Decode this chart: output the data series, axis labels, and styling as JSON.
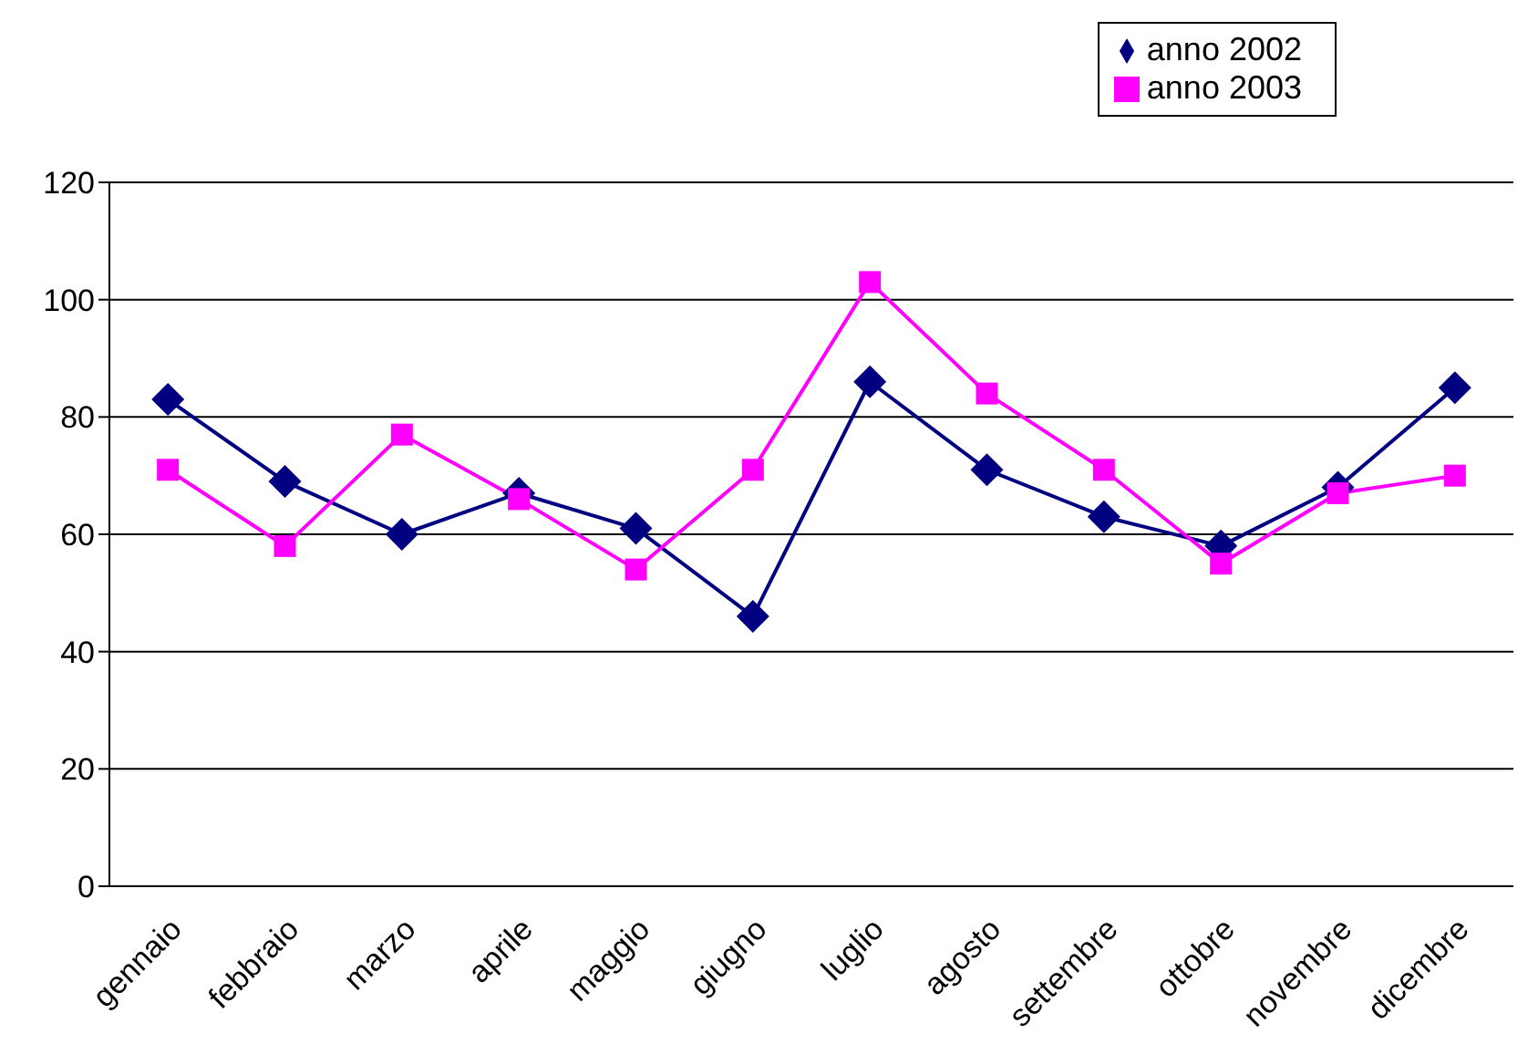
{
  "chart_data": {
    "type": "line",
    "categories": [
      "gennaio",
      "febbraio",
      "marzo",
      "aprile",
      "maggio",
      "giugno",
      "luglio",
      "agosto",
      "settembre",
      "ottobre",
      "novembre",
      "dicembre"
    ],
    "series": [
      {
        "name": "anno 2002",
        "color": "#000080",
        "marker": "diamond",
        "values": [
          83,
          69,
          60,
          67,
          61,
          46,
          86,
          71,
          63,
          58,
          68,
          85
        ]
      },
      {
        "name": "anno 2003",
        "color": "#ff00ff",
        "marker": "square",
        "values": [
          71,
          58,
          77,
          66,
          54,
          71,
          103,
          84,
          71,
          55,
          67,
          70
        ]
      }
    ],
    "ylim": [
      0,
      120
    ],
    "yticks": [
      0,
      20,
      40,
      60,
      80,
      100,
      120
    ],
    "grid": "y",
    "legend": "top right",
    "line_style": "solid"
  }
}
